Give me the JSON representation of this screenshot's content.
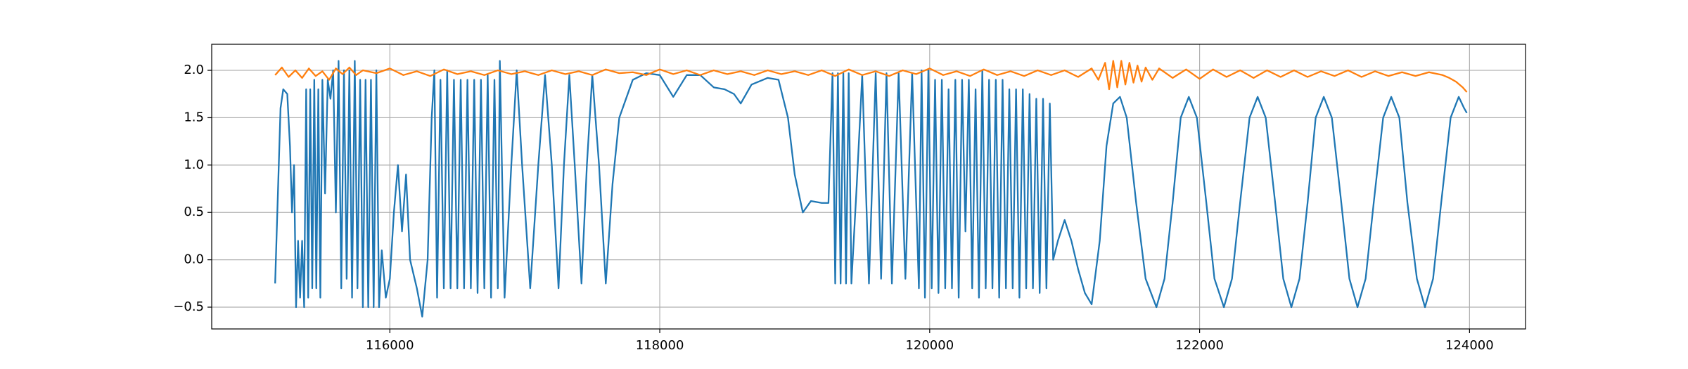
{
  "chart_data": {
    "type": "line",
    "xlim": [
      114680,
      124415
    ],
    "ylim": [
      -0.73,
      2.275
    ],
    "xticks": [
      116000,
      118000,
      120000,
      122000,
      124000
    ],
    "yticks": [
      {
        "value": -0.5,
        "label": "−0.5"
      },
      {
        "value": 0,
        "label": "0.0"
      },
      0.5,
      {
        "value": 1,
        "label": "1.0"
      },
      1.5,
      {
        "value": 2,
        "label": "2.0"
      }
    ],
    "grid": true,
    "series": [
      {
        "color": "#1f77b4",
        "x": [
          115150,
          115190,
          115210,
          115240,
          115260,
          115275,
          115290,
          115305,
          115320,
          115335,
          115350,
          115365,
          115380,
          115395,
          115410,
          115425,
          115440,
          115455,
          115470,
          115485,
          115500,
          115520,
          115540,
          115560,
          115580,
          115600,
          115620,
          115640,
          115660,
          115680,
          115700,
          115720,
          115740,
          115760,
          115780,
          115800,
          115820,
          115840,
          115860,
          115880,
          115900,
          115920,
          115940,
          115970,
          116000,
          116030,
          116060,
          116090,
          116120,
          116150,
          116200,
          116240,
          116280,
          116310,
          116330,
          116350,
          116375,
          116400,
          116425,
          116450,
          116475,
          116500,
          116525,
          116550,
          116575,
          116600,
          116625,
          116650,
          116675,
          116700,
          116725,
          116750,
          116775,
          116800,
          116815,
          116850,
          116900,
          116940,
          116980,
          117040,
          117100,
          117150,
          117200,
          117250,
          117290,
          117330,
          117370,
          117420,
          117460,
          117500,
          117550,
          117600,
          117650,
          117700,
          117800,
          117900,
          118000,
          118100,
          118200,
          118300,
          118400,
          118480,
          118550,
          118600,
          118680,
          118800,
          118880,
          118950,
          119000,
          119060,
          119120,
          119200,
          119250,
          119280,
          119300,
          119320,
          119340,
          119360,
          119380,
          119400,
          119420,
          119460,
          119500,
          119550,
          119600,
          119640,
          119680,
          119720,
          119770,
          119820,
          119870,
          119920,
          119940,
          119965,
          119990,
          120015,
          120040,
          120065,
          120090,
          120115,
          120140,
          120165,
          120190,
          120215,
          120240,
          120265,
          120290,
          120315,
          120340,
          120365,
          120390,
          120415,
          120440,
          120465,
          120490,
          120515,
          120540,
          120565,
          120590,
          120615,
          120640,
          120665,
          120690,
          120715,
          120740,
          120765,
          120790,
          120815,
          120840,
          120865,
          120890,
          120915,
          120950,
          121000,
          121050,
          121100,
          121150,
          121200,
          121260,
          121310,
          121360,
          121410,
          121460,
          121530,
          121600,
          121680,
          121740,
          121800,
          121860,
          121920,
          121980,
          122050,
          122110,
          122180,
          122240,
          122300,
          122370,
          122430,
          122490,
          122560,
          122620,
          122680,
          122740,
          122800,
          122860,
          122920,
          122980,
          123050,
          123110,
          123170,
          123230,
          123290,
          123360,
          123420,
          123480,
          123540,
          123610,
          123670,
          123730,
          123790,
          123860,
          123920,
          123960,
          123980
        ],
        "values": [
          -0.25,
          1.6,
          1.8,
          1.75,
          1.2,
          0.5,
          1.0,
          -0.5,
          0.2,
          -0.4,
          0.2,
          -0.5,
          1.8,
          -0.4,
          1.8,
          -0.3,
          1.9,
          -0.3,
          1.8,
          -0.4,
          1.9,
          0.7,
          1.9,
          1.7,
          2.0,
          0.5,
          2.1,
          -0.3,
          2.0,
          -0.2,
          2.0,
          -0.4,
          2.1,
          -0.3,
          1.9,
          -0.5,
          1.9,
          -0.5,
          1.9,
          -0.5,
          2.0,
          -0.5,
          0.1,
          -0.4,
          -0.2,
          0.5,
          1.0,
          0.3,
          0.9,
          0.0,
          -0.3,
          -0.6,
          0.0,
          1.5,
          2.0,
          -0.4,
          1.9,
          -0.3,
          2.0,
          -0.3,
          1.9,
          -0.3,
          1.9,
          -0.3,
          1.9,
          -0.3,
          1.9,
          -0.35,
          1.9,
          -0.3,
          1.95,
          -0.4,
          1.9,
          -0.3,
          2.1,
          -0.4,
          1.0,
          2.0,
          1.0,
          -0.3,
          1.0,
          1.95,
          1.0,
          -0.3,
          1.0,
          1.95,
          1.0,
          -0.25,
          1.0,
          1.95,
          1.0,
          -0.25,
          0.8,
          1.5,
          1.9,
          1.97,
          1.95,
          1.72,
          1.95,
          1.95,
          1.82,
          1.8,
          1.75,
          1.65,
          1.85,
          1.92,
          1.9,
          1.5,
          0.9,
          0.5,
          0.62,
          0.6,
          0.6,
          1.97,
          -0.25,
          1.97,
          -0.25,
          1.97,
          -0.25,
          1.97,
          -0.25,
          0.8,
          1.95,
          -0.25,
          1.97,
          -0.2,
          1.97,
          -0.25,
          1.97,
          -0.2,
          1.97,
          -0.3,
          2.0,
          -0.4,
          2.0,
          -0.3,
          1.9,
          -0.35,
          1.9,
          -0.3,
          1.8,
          -0.3,
          1.9,
          -0.4,
          1.9,
          0.3,
          1.9,
          -0.3,
          1.8,
          -0.4,
          2.0,
          -0.3,
          1.9,
          -0.3,
          1.9,
          -0.4,
          1.9,
          -0.3,
          1.8,
          -0.3,
          1.8,
          -0.4,
          1.8,
          -0.3,
          1.75,
          -0.3,
          1.7,
          -0.35,
          1.7,
          -0.3,
          1.65,
          0.0,
          0.2,
          0.42,
          0.2,
          -0.1,
          -0.35,
          -0.47,
          0.2,
          1.2,
          1.65,
          1.72,
          1.5,
          0.6,
          -0.2,
          -0.5,
          -0.2,
          0.6,
          1.5,
          1.72,
          1.5,
          0.6,
          -0.2,
          -0.5,
          -0.2,
          0.6,
          1.5,
          1.72,
          1.5,
          0.6,
          -0.2,
          -0.5,
          -0.2,
          0.6,
          1.5,
          1.72,
          1.5,
          0.6,
          -0.2,
          -0.5,
          -0.2,
          0.6,
          1.5,
          1.72,
          1.5,
          0.6,
          -0.2,
          -0.5,
          -0.2,
          0.6,
          1.5,
          1.72,
          1.6,
          1.55
        ]
      },
      {
        "color": "#ff7f0e",
        "x": [
          115150,
          115200,
          115250,
          115300,
          115350,
          115400,
          115450,
          115500,
          115550,
          115600,
          115650,
          115700,
          115750,
          115800,
          115900,
          116000,
          116100,
          116200,
          116300,
          116400,
          116500,
          116600,
          116700,
          116800,
          116900,
          117000,
          117100,
          117200,
          117300,
          117400,
          117500,
          117600,
          117700,
          117800,
          117900,
          118000,
          118100,
          118200,
          118300,
          118400,
          118500,
          118600,
          118700,
          118800,
          118900,
          119000,
          119100,
          119200,
          119300,
          119400,
          119500,
          119600,
          119700,
          119800,
          119900,
          120000,
          120100,
          120200,
          120300,
          120400,
          120500,
          120600,
          120700,
          120800,
          120900,
          121000,
          121100,
          121200,
          121250,
          121300,
          121330,
          121360,
          121390,
          121420,
          121450,
          121480,
          121510,
          121540,
          121570,
          121600,
          121650,
          121700,
          121800,
          121900,
          122000,
          122100,
          122200,
          122300,
          122400,
          122500,
          122600,
          122700,
          122800,
          122900,
          123000,
          123100,
          123200,
          123300,
          123400,
          123500,
          123600,
          123700,
          123800,
          123850,
          123900,
          123950,
          123980
        ],
        "values": [
          1.95,
          2.03,
          1.93,
          2.0,
          1.92,
          2.02,
          1.94,
          1.99,
          1.9,
          2.02,
          1.96,
          2.03,
          1.95,
          2.0,
          1.97,
          2.02,
          1.95,
          1.99,
          1.94,
          2.01,
          1.96,
          1.99,
          1.95,
          2.0,
          1.96,
          1.99,
          1.95,
          2.0,
          1.96,
          1.99,
          1.95,
          2.01,
          1.97,
          1.98,
          1.95,
          2.01,
          1.96,
          2.0,
          1.95,
          2.0,
          1.96,
          1.99,
          1.95,
          2.0,
          1.96,
          1.99,
          1.95,
          2.0,
          1.94,
          2.01,
          1.95,
          1.99,
          1.94,
          2.0,
          1.96,
          2.02,
          1.95,
          1.99,
          1.94,
          2.01,
          1.95,
          1.99,
          1.94,
          2.0,
          1.95,
          2.0,
          1.93,
          2.02,
          1.9,
          2.08,
          1.8,
          2.1,
          1.82,
          2.1,
          1.85,
          2.08,
          1.87,
          2.05,
          1.88,
          2.03,
          1.9,
          2.02,
          1.92,
          2.01,
          1.91,
          2.01,
          1.93,
          2.0,
          1.92,
          2.0,
          1.93,
          2.0,
          1.93,
          1.99,
          1.94,
          2.0,
          1.93,
          1.99,
          1.94,
          1.98,
          1.94,
          1.98,
          1.95,
          1.92,
          1.88,
          1.82,
          1.77
        ]
      }
    ]
  }
}
